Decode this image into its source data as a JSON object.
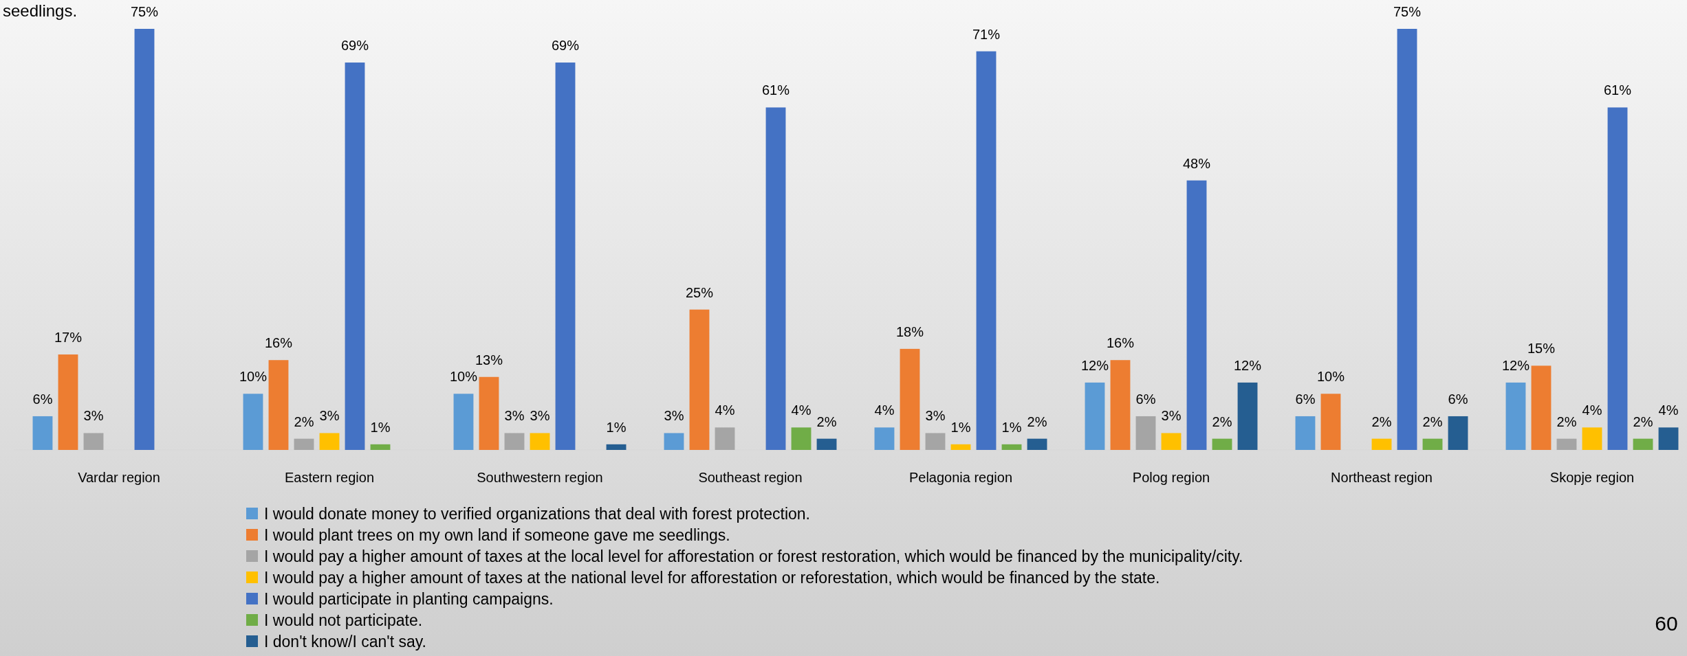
{
  "chart_data": {
    "type": "bar",
    "title": "seedlings.",
    "categories": [
      "Vardar region",
      "Eastern region",
      "Southwestern region",
      "Southeast region",
      "Pelagonia region",
      "Polog region",
      "Northeast region",
      "Skopje region"
    ],
    "series": [
      {
        "name": "I would donate money to verified organizations that deal with forest protection.",
        "color": "#5b9bd5",
        "values": [
          6,
          10,
          10,
          3,
          4,
          12,
          6,
          12
        ],
        "value_labels": [
          "6%",
          "10%",
          "10%",
          "3%",
          "4%",
          "12%",
          "6%",
          "12%"
        ]
      },
      {
        "name": "I would plant trees on my own land if someone gave me seedlings.",
        "color": "#ed7d31",
        "values": [
          17,
          16,
          13,
          25,
          18,
          16,
          10,
          15
        ],
        "value_labels": [
          "17%",
          "16%",
          "13%",
          "25%",
          "18%",
          "16%",
          "10%",
          "15%"
        ]
      },
      {
        "name": "I would pay a higher amount of taxes at the local level for afforestation or forest restoration, which would be financed by the municipality/city.",
        "color": "#a5a5a5",
        "values": [
          3,
          2,
          3,
          4,
          3,
          6,
          null,
          2
        ],
        "value_labels": [
          "3%",
          "2%",
          "3%",
          "4%",
          "3%",
          "6%",
          null,
          "2%"
        ]
      },
      {
        "name": "I would pay a higher amount of taxes at the national level for afforestation or reforestation, which would be financed by the state.",
        "color": "#ffc000",
        "values": [
          null,
          3,
          3,
          null,
          1,
          3,
          2,
          4
        ],
        "value_labels": [
          null,
          "3%",
          "3%",
          null,
          "1%",
          "3%",
          "2%",
          "4%"
        ]
      },
      {
        "name": "I would participate in planting campaigns.",
        "color": "#4472c4",
        "values": [
          75,
          69,
          69,
          61,
          71,
          48,
          75,
          61
        ],
        "value_labels": [
          "75%",
          "69%",
          "69%",
          "61%",
          "71%",
          "48%",
          "75%",
          "61%"
        ]
      },
      {
        "name": "I would not participate.",
        "color": "#70ad47",
        "values": [
          null,
          1,
          null,
          4,
          1,
          2,
          2,
          2
        ],
        "value_labels": [
          null,
          "1%",
          null,
          "4%",
          "1%",
          "2%",
          "2%",
          "2%"
        ]
      },
      {
        "name": "I don't know/I can't say.",
        "color": "#255e91",
        "values": [
          null,
          null,
          1,
          2,
          2,
          12,
          6,
          4
        ],
        "value_labels": [
          null,
          null,
          "1%",
          "2%",
          "2%",
          "12%",
          "6%",
          "4%"
        ]
      }
    ],
    "legend": "bottom",
    "grid": false,
    "annotations": [
      "60"
    ]
  }
}
